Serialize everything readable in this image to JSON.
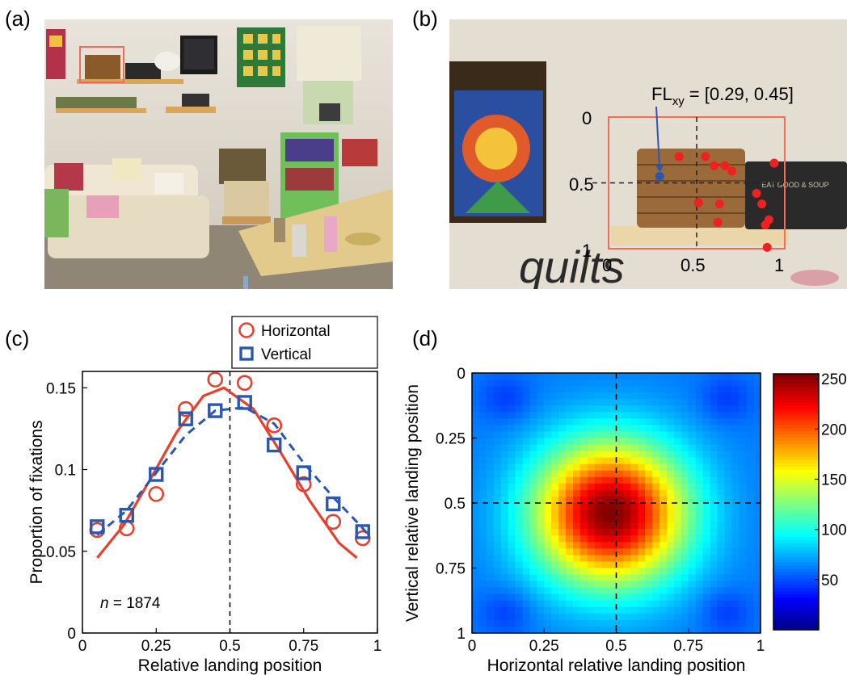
{
  "panels": {
    "a": {
      "label": "(a)"
    },
    "b": {
      "label": "(b)",
      "annotation_main": "FL",
      "annotation_sub": "xy",
      "annotation_value": " = [0.29, 0.45]",
      "tick_labels_y": [
        "0",
        "0.5",
        "1"
      ],
      "tick_labels_x": [
        "0",
        "0.5",
        "1"
      ],
      "sign_text": "EAT GOOD & SOUP",
      "quilts_text": "quilts"
    },
    "c": {
      "label": "(c)"
    },
    "d": {
      "label": "(d)"
    }
  },
  "colors": {
    "horizontal": "#e8402c",
    "vertical": "#2b57b0",
    "box": "#f26b57",
    "fixation": "#f02020"
  },
  "chart_data": [
    {
      "panel": "c",
      "type": "scatter",
      "xlabel": "Relative landing position",
      "ylabel": "Proportion of fixations",
      "xlim": [
        0,
        1
      ],
      "ylim": [
        0,
        0.16
      ],
      "x_ticks": [
        "0",
        "0.25",
        "0.5",
        "0.75",
        "1"
      ],
      "y_ticks": [
        "0",
        "0.05",
        "0.1",
        "0.15"
      ],
      "x_tick_values": [
        0,
        0.25,
        0.5,
        0.75,
        1
      ],
      "y_tick_values": [
        0,
        0.05,
        0.1,
        0.15
      ],
      "annotation_n_label": "n",
      "annotation_n_value": " = 1874",
      "reference_line_x": 0.5,
      "x": [
        0.05,
        0.15,
        0.25,
        0.35,
        0.45,
        0.55,
        0.65,
        0.75,
        0.85,
        0.95
      ],
      "series": [
        {
          "name": "Horizontal",
          "marker": "circle",
          "fit": "solid",
          "values": [
            0.063,
            0.064,
            0.085,
            0.137,
            0.155,
            0.153,
            0.127,
            0.091,
            0.068,
            0.058
          ],
          "fit_values": [
            0.046,
            0.066,
            0.094,
            0.123,
            0.145,
            0.15,
            0.137,
            0.111,
            0.081,
            0.055,
            0.046
          ],
          "fit_x": [
            0.05,
            0.14,
            0.23,
            0.32,
            0.41,
            0.48,
            0.58,
            0.67,
            0.77,
            0.87,
            0.93
          ]
        },
        {
          "name": "Vertical",
          "marker": "square",
          "fit": "dashed",
          "values": [
            0.065,
            0.072,
            0.097,
            0.131,
            0.136,
            0.141,
            0.115,
            0.098,
            0.079,
            0.062
          ],
          "fit_values": [
            0.06,
            0.075,
            0.098,
            0.121,
            0.136,
            0.138,
            0.128,
            0.104,
            0.083,
            0.068,
            0.06
          ],
          "fit_x": [
            0.05,
            0.15,
            0.25,
            0.35,
            0.45,
            0.55,
            0.65,
            0.75,
            0.85,
            0.93,
            0.97
          ]
        }
      ]
    },
    {
      "panel": "d",
      "type": "heatmap",
      "xlabel": "Horizontal relative landing position",
      "ylabel": "Vertical relative landing position",
      "xlim": [
        0,
        1
      ],
      "ylim": [
        0,
        1
      ],
      "y_inverted": true,
      "x_ticks": [
        "0",
        "0.25",
        "0.5",
        "0.75",
        "1"
      ],
      "y_ticks": [
        "0",
        "0.25",
        "0.5",
        "0.75",
        "1"
      ],
      "tick_values": [
        0,
        0.25,
        0.5,
        0.75,
        1
      ],
      "reference_lines": {
        "x": 0.5,
        "y": 0.5
      },
      "peak": {
        "x": 0.48,
        "y": 0.54,
        "value": 255
      },
      "colorbar": {
        "range": [
          0,
          255
        ],
        "ticks": [
          "250",
          "200",
          "150",
          "100",
          "50"
        ],
        "tick_values": [
          250,
          200,
          150,
          100,
          50
        ],
        "colormap": "jet"
      }
    }
  ]
}
